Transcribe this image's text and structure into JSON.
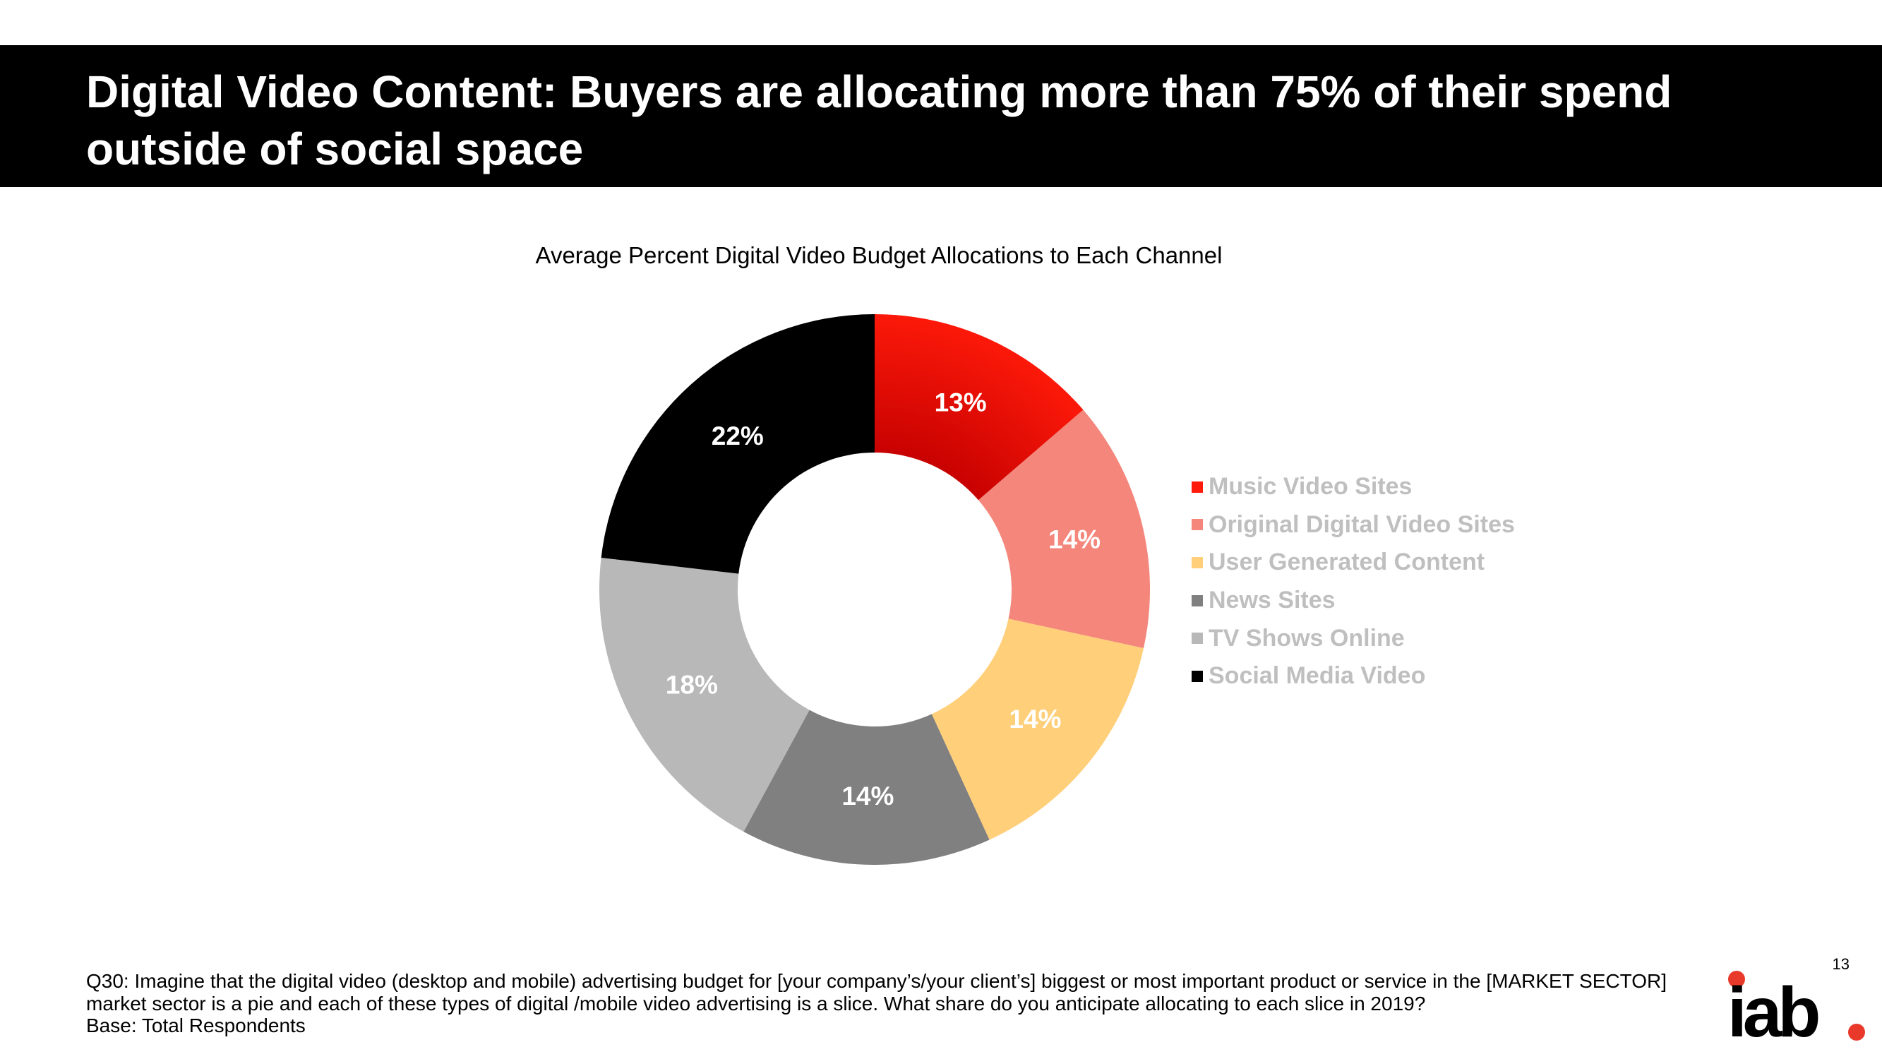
{
  "header": {
    "title": "Digital Video Content:  Buyers are allocating more than 75% of their spend\noutside of social space"
  },
  "chart_data": {
    "type": "pie",
    "style": "donut",
    "title": "Average Percent Digital Video Budget Allocations to Each Channel",
    "slices": [
      {
        "name": "Music Video Sites",
        "value": 13,
        "label": "13%",
        "color": "#ff1a0a",
        "label_color": "#ffffff"
      },
      {
        "name": "Original Digital Video Sites",
        "value": 14,
        "label": "14%",
        "color": "#f4867b",
        "label_color": "#ffffff"
      },
      {
        "name": "User Generated Content",
        "value": 14,
        "label": "14%",
        "color": "#ffcf7a",
        "label_color": "#ffffff"
      },
      {
        "name": "News Sites",
        "value": 14,
        "label": "14%",
        "color": "#808080",
        "label_color": "#ffffff"
      },
      {
        "name": "TV Shows Online",
        "value": 18,
        "label": "18%",
        "color": "#b8b8b8",
        "label_color": "#ffffff"
      },
      {
        "name": "Social Media Video",
        "value": 22,
        "label": "22%",
        "color": "#000000",
        "label_color": "#ffffff"
      }
    ],
    "legend_position": "right",
    "start": "12 o'clock, clockwise"
  },
  "footnote": {
    "question": "Q30: Imagine that the digital video (desktop and mobile) advertising budget for [your company’s/your client’s] biggest or most important product or service in the [MARKET SECTOR] market sector is a pie and each of these types of digital /mobile video advertising is a slice. What share do you anticipate allocating to each slice in 2019?",
    "base": "Base: Total Respondents"
  },
  "page_number": "13",
  "logo": {
    "text": "iab",
    "accent_color": "#e8392b"
  }
}
